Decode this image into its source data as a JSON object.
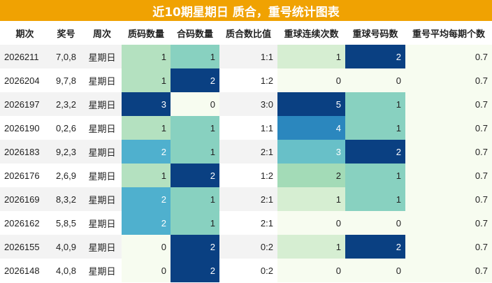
{
  "chart_data": {
    "type": "table",
    "title": "近10期星期日 质合，重号统计图表",
    "columns": [
      "期次",
      "奖号",
      "周次",
      "质码数量",
      "合码数量",
      "质合数比值",
      "重球连续次数",
      "重球号码数",
      "重号平均每期个数"
    ],
    "rows": [
      [
        "2026211",
        "7,0,8",
        "星期日",
        1,
        1,
        "1:1",
        1,
        2,
        0.7
      ],
      [
        "2026204",
        "9,7,8",
        "星期日",
        1,
        2,
        "1:2",
        0,
        0,
        0.7
      ],
      [
        "2026197",
        "2,3,2",
        "星期日",
        3,
        0,
        "3:0",
        5,
        1,
        0.7
      ],
      [
        "2026190",
        "0,2,6",
        "星期日",
        1,
        1,
        "1:1",
        4,
        1,
        0.7
      ],
      [
        "2026183",
        "9,2,3",
        "星期日",
        2,
        1,
        "2:1",
        3,
        2,
        0.7
      ],
      [
        "2026176",
        "2,6,9",
        "星期日",
        1,
        2,
        "1:2",
        2,
        1,
        0.7
      ],
      [
        "2026169",
        "8,3,2",
        "星期日",
        2,
        1,
        "2:1",
        1,
        1,
        0.7
      ],
      [
        "2026162",
        "5,8,5",
        "星期日",
        2,
        1,
        "2:1",
        0,
        0,
        0.7
      ],
      [
        "2026155",
        "4,0,9",
        "星期日",
        0,
        2,
        "0:2",
        1,
        2,
        0.7
      ],
      [
        "2026148",
        "4,0,8",
        "星期日",
        0,
        2,
        "0:2",
        0,
        0,
        0.7
      ]
    ],
    "heat_columns": {
      "3": [
        0,
        3
      ],
      "4": [
        0,
        2
      ],
      "6": [
        0,
        5
      ],
      "7": [
        0,
        2
      ]
    },
    "colormap": "GnBu"
  },
  "colors": {
    "title_bg": "#f0a202",
    "title_text": "#ffffff",
    "row_stripe": "#f3f3f3",
    "avg_column_bg": "#f7fcf0"
  }
}
